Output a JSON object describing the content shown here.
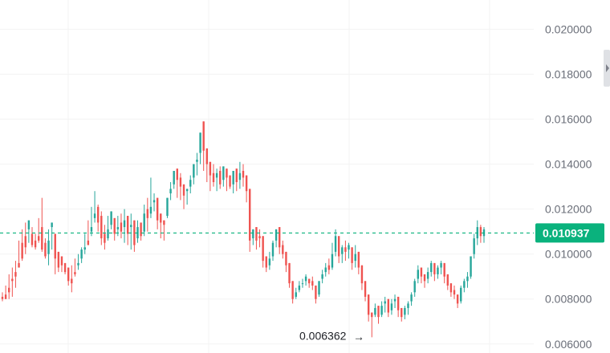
{
  "chart_data": {
    "type": "candlestick",
    "y_axis": {
      "ticks": [
        "0.006000",
        "0.008000",
        "0.010000",
        "0.012000",
        "0.014000",
        "0.016000",
        "0.018000",
        "0.020000"
      ],
      "range": [
        0.0056,
        0.0213
      ],
      "position": "right"
    },
    "last_price": {
      "label": "0.010937",
      "value": 0.010937,
      "color": "#0ab27d"
    },
    "low_marker": {
      "label": "0.006362",
      "value": 0.006362,
      "arrow": "→"
    },
    "grid": true,
    "colors": {
      "up": "#26a69a",
      "down": "#ef5350",
      "grid": "#f3f3f3",
      "axis_text": "#6b6f79"
    },
    "candles": [
      [
        0.0081,
        0.0083,
        0.008,
        0.0079
      ],
      [
        0.0082,
        0.0086,
        0.008,
        0.008
      ],
      [
        0.0085,
        0.0091,
        0.0083,
        0.008
      ],
      [
        0.0089,
        0.0094,
        0.0088,
        0.0081
      ],
      [
        0.0092,
        0.0097,
        0.009,
        0.0085
      ],
      [
        0.0096,
        0.0106,
        0.0094,
        0.0094
      ],
      [
        0.0105,
        0.0111,
        0.0098,
        0.0097
      ],
      [
        0.0108,
        0.0114,
        0.0103,
        0.01
      ],
      [
        0.0111,
        0.011,
        0.0115,
        0.0105
      ],
      [
        0.0109,
        0.0112,
        0.0104,
        0.0103
      ],
      [
        0.0106,
        0.0109,
        0.0103,
        0.0102
      ],
      [
        0.0108,
        0.0116,
        0.0106,
        0.0105
      ],
      [
        0.0112,
        0.0125,
        0.0102,
        0.0101
      ],
      [
        0.0105,
        0.0107,
        0.0099,
        0.0098
      ],
      [
        0.01,
        0.0111,
        0.0106,
        0.0095
      ],
      [
        0.0112,
        0.0103,
        0.0114,
        0.0102
      ],
      [
        0.0109,
        0.0103,
        0.0098,
        0.0091
      ],
      [
        0.0101,
        0.0097,
        0.0094,
        0.0092
      ],
      [
        0.0099,
        0.0096,
        0.0095,
        0.0092
      ],
      [
        0.0096,
        0.0096,
        0.0092,
        0.0091
      ],
      [
        0.0094,
        0.0087,
        0.0088,
        0.0086
      ],
      [
        0.0089,
        0.0095,
        0.0087,
        0.0083
      ],
      [
        0.0092,
        0.0098,
        0.0091,
        0.009
      ],
      [
        0.0095,
        0.01,
        0.0096,
        0.0093
      ],
      [
        0.0098,
        0.0103,
        0.0102,
        0.0096
      ],
      [
        0.0102,
        0.0109,
        0.0103,
        0.01
      ],
      [
        0.0106,
        0.0115,
        0.0104,
        0.0104
      ],
      [
        0.011,
        0.0121,
        0.0112,
        0.0108
      ],
      [
        0.0116,
        0.0128,
        0.0118,
        0.0114
      ],
      [
        0.0121,
        0.0122,
        0.0114,
        0.011
      ],
      [
        0.0117,
        0.0119,
        0.0107,
        0.0104
      ],
      [
        0.0109,
        0.0113,
        0.0105,
        0.0102
      ],
      [
        0.0107,
        0.0117,
        0.0111,
        0.0106
      ],
      [
        0.0113,
        0.0116,
        0.0119,
        0.0111
      ],
      [
        0.0116,
        0.0113,
        0.0109,
        0.0106
      ],
      [
        0.0111,
        0.0117,
        0.0112,
        0.0108
      ],
      [
        0.0114,
        0.0118,
        0.011,
        0.0107
      ],
      [
        0.0112,
        0.012,
        0.0115,
        0.0105
      ],
      [
        0.0117,
        0.0115,
        0.0109,
        0.0104
      ],
      [
        0.0112,
        0.0118,
        0.0113,
        0.0102
      ],
      [
        0.0115,
        0.0109,
        0.0104,
        0.0101
      ],
      [
        0.0107,
        0.0115,
        0.0112,
        0.0105
      ],
      [
        0.0114,
        0.0113,
        0.0108,
        0.0106
      ],
      [
        0.011,
        0.0122,
        0.0118,
        0.0108
      ],
      [
        0.012,
        0.0125,
        0.0116,
        0.011
      ],
      [
        0.0118,
        0.0134,
        0.0121,
        0.0116
      ],
      [
        0.0123,
        0.0127,
        0.0124,
        0.0119
      ],
      [
        0.0125,
        0.0124,
        0.0115,
        0.0111
      ],
      [
        0.0118,
        0.0116,
        0.0114,
        0.0107
      ],
      [
        0.0115,
        0.0111,
        0.0113,
        0.0106
      ],
      [
        0.0117,
        0.012,
        0.0125,
        0.0116
      ],
      [
        0.0127,
        0.0132,
        0.0129,
        0.0124
      ],
      [
        0.0131,
        0.0136,
        0.0137,
        0.0129
      ],
      [
        0.0138,
        0.0131,
        0.0133,
        0.0125
      ],
      [
        0.0134,
        0.0136,
        0.013,
        0.0124
      ],
      [
        0.0131,
        0.0127,
        0.0126,
        0.012
      ],
      [
        0.0128,
        0.0123,
        0.0129,
        0.0122
      ],
      [
        0.013,
        0.0135,
        0.0133,
        0.0127
      ],
      [
        0.0134,
        0.0137,
        0.014,
        0.0131
      ],
      [
        0.0141,
        0.0145,
        0.0142,
        0.0135
      ],
      [
        0.0145,
        0.0152,
        0.0154,
        0.014
      ],
      [
        0.0159,
        0.0148,
        0.0146,
        0.0137
      ],
      [
        0.0147,
        0.0144,
        0.014,
        0.0132
      ],
      [
        0.0141,
        0.0138,
        0.0135,
        0.0128
      ],
      [
        0.0136,
        0.014,
        0.0132,
        0.013
      ],
      [
        0.0134,
        0.0138,
        0.0136,
        0.0128
      ],
      [
        0.0137,
        0.0139,
        0.0131,
        0.0129
      ],
      [
        0.0133,
        0.0132,
        0.0139,
        0.013
      ],
      [
        0.0138,
        0.0136,
        0.0134,
        0.0128
      ],
      [
        0.0135,
        0.0133,
        0.013,
        0.0129
      ],
      [
        0.0131,
        0.0135,
        0.0137,
        0.0127
      ],
      [
        0.0138,
        0.0134,
        0.0132,
        0.0128
      ],
      [
        0.0133,
        0.0141,
        0.0136,
        0.0129
      ],
      [
        0.0137,
        0.014,
        0.0134,
        0.013
      ],
      [
        0.0135,
        0.0131,
        0.0128,
        0.0123
      ],
      [
        0.0129,
        0.011,
        0.0106,
        0.0101
      ],
      [
        0.0107,
        0.011,
        0.0111,
        0.0104
      ],
      [
        0.0112,
        0.011,
        0.0106,
        0.0102
      ],
      [
        0.0108,
        0.0111,
        0.0107,
        0.0103
      ],
      [
        0.0108,
        0.0101,
        0.0097,
        0.0094
      ],
      [
        0.0099,
        0.0096,
        0.0094,
        0.0092
      ],
      [
        0.0095,
        0.0101,
        0.0098,
        0.0093
      ],
      [
        0.0099,
        0.0106,
        0.0105,
        0.0097
      ],
      [
        0.0106,
        0.011,
        0.0111,
        0.0103
      ],
      [
        0.0112,
        0.0107,
        0.0103,
        0.01
      ],
      [
        0.0104,
        0.0106,
        0.01,
        0.0098
      ],
      [
        0.0101,
        0.0098,
        0.0095,
        0.0092
      ],
      [
        0.0096,
        0.0089,
        0.0087,
        0.0085
      ],
      [
        0.0088,
        0.0082,
        0.008,
        0.0078
      ],
      [
        0.0081,
        0.0085,
        0.0083,
        0.008
      ],
      [
        0.0084,
        0.0088,
        0.0086,
        0.0083
      ],
      [
        0.0087,
        0.0089,
        0.0087,
        0.0085
      ],
      [
        0.0088,
        0.0091,
        0.009,
        0.0086
      ],
      [
        0.0089,
        0.0088,
        0.0087,
        0.0085
      ],
      [
        0.0088,
        0.009,
        0.0086,
        0.0084
      ],
      [
        0.0086,
        0.0083,
        0.008,
        0.0078
      ],
      [
        0.0082,
        0.0086,
        0.0088,
        0.0081
      ],
      [
        0.0089,
        0.0093,
        0.0091,
        0.0087
      ],
      [
        0.0092,
        0.0096,
        0.0094,
        0.009
      ],
      [
        0.0095,
        0.0098,
        0.0093,
        0.0091
      ],
      [
        0.0094,
        0.0105,
        0.01,
        0.0093
      ],
      [
        0.0101,
        0.0111,
        0.0108,
        0.0099
      ],
      [
        0.0108,
        0.0102,
        0.0099,
        0.0096
      ],
      [
        0.01,
        0.0104,
        0.0103,
        0.0096
      ],
      [
        0.0103,
        0.0106,
        0.0101,
        0.0097
      ],
      [
        0.0102,
        0.0105,
        0.0104,
        0.0098
      ],
      [
        0.0103,
        0.0099,
        0.0096,
        0.0093
      ],
      [
        0.0097,
        0.0104,
        0.01,
        0.0094
      ],
      [
        0.0101,
        0.0099,
        0.0094,
        0.0091
      ],
      [
        0.0095,
        0.009,
        0.0087,
        0.0084
      ],
      [
        0.0088,
        0.0085,
        0.0081,
        0.0079
      ],
      [
        0.0082,
        0.0076,
        0.0073,
        0.007
      ],
      [
        0.0074,
        0.0063,
        0.0072,
        0.0063
      ],
      [
        0.0073,
        0.0078,
        0.0076,
        0.0072
      ],
      [
        0.0077,
        0.0074,
        0.0072,
        0.0069
      ],
      [
        0.0073,
        0.0079,
        0.0077,
        0.0072
      ],
      [
        0.0078,
        0.0081,
        0.0079,
        0.0074
      ],
      [
        0.008,
        0.0076,
        0.0074,
        0.0072
      ],
      [
        0.0075,
        0.008,
        0.0078,
        0.0073
      ],
      [
        0.0079,
        0.0082,
        0.008,
        0.0076
      ],
      [
        0.0081,
        0.0077,
        0.0075,
        0.0072
      ],
      [
        0.0076,
        0.0074,
        0.0072,
        0.007
      ],
      [
        0.0073,
        0.0077,
        0.0076,
        0.0071
      ],
      [
        0.0076,
        0.0079,
        0.0078,
        0.0073
      ],
      [
        0.0079,
        0.0083,
        0.0082,
        0.0077
      ],
      [
        0.0083,
        0.0089,
        0.0088,
        0.0081
      ],
      [
        0.0089,
        0.0095,
        0.0093,
        0.0087
      ],
      [
        0.0094,
        0.0092,
        0.009,
        0.0087
      ],
      [
        0.0091,
        0.0089,
        0.0088,
        0.0085
      ],
      [
        0.0089,
        0.0094,
        0.0092,
        0.0087
      ],
      [
        0.0092,
        0.0097,
        0.0096,
        0.009
      ],
      [
        0.0096,
        0.0093,
        0.0091,
        0.0088
      ],
      [
        0.0091,
        0.0095,
        0.0094,
        0.0089
      ],
      [
        0.0094,
        0.0097,
        0.0096,
        0.0091
      ],
      [
        0.0096,
        0.0092,
        0.009,
        0.0087
      ],
      [
        0.0091,
        0.0088,
        0.0086,
        0.0084
      ],
      [
        0.0087,
        0.0085,
        0.0083,
        0.0081
      ],
      [
        0.0084,
        0.0086,
        0.0082,
        0.008
      ],
      [
        0.0082,
        0.0079,
        0.0078,
        0.0076
      ],
      [
        0.0079,
        0.0086,
        0.0085,
        0.0078
      ],
      [
        0.0085,
        0.0089,
        0.0088,
        0.0083
      ],
      [
        0.0088,
        0.0092,
        0.009,
        0.0085
      ],
      [
        0.009,
        0.0097,
        0.0099,
        0.0089
      ],
      [
        0.01,
        0.0109,
        0.0107,
        0.0098
      ],
      [
        0.0107,
        0.0115,
        0.0112,
        0.0104
      ],
      [
        0.0112,
        0.0113,
        0.0108,
        0.0105
      ],
      [
        0.0108,
        0.0112,
        0.0111,
        0.0105
      ]
    ]
  }
}
